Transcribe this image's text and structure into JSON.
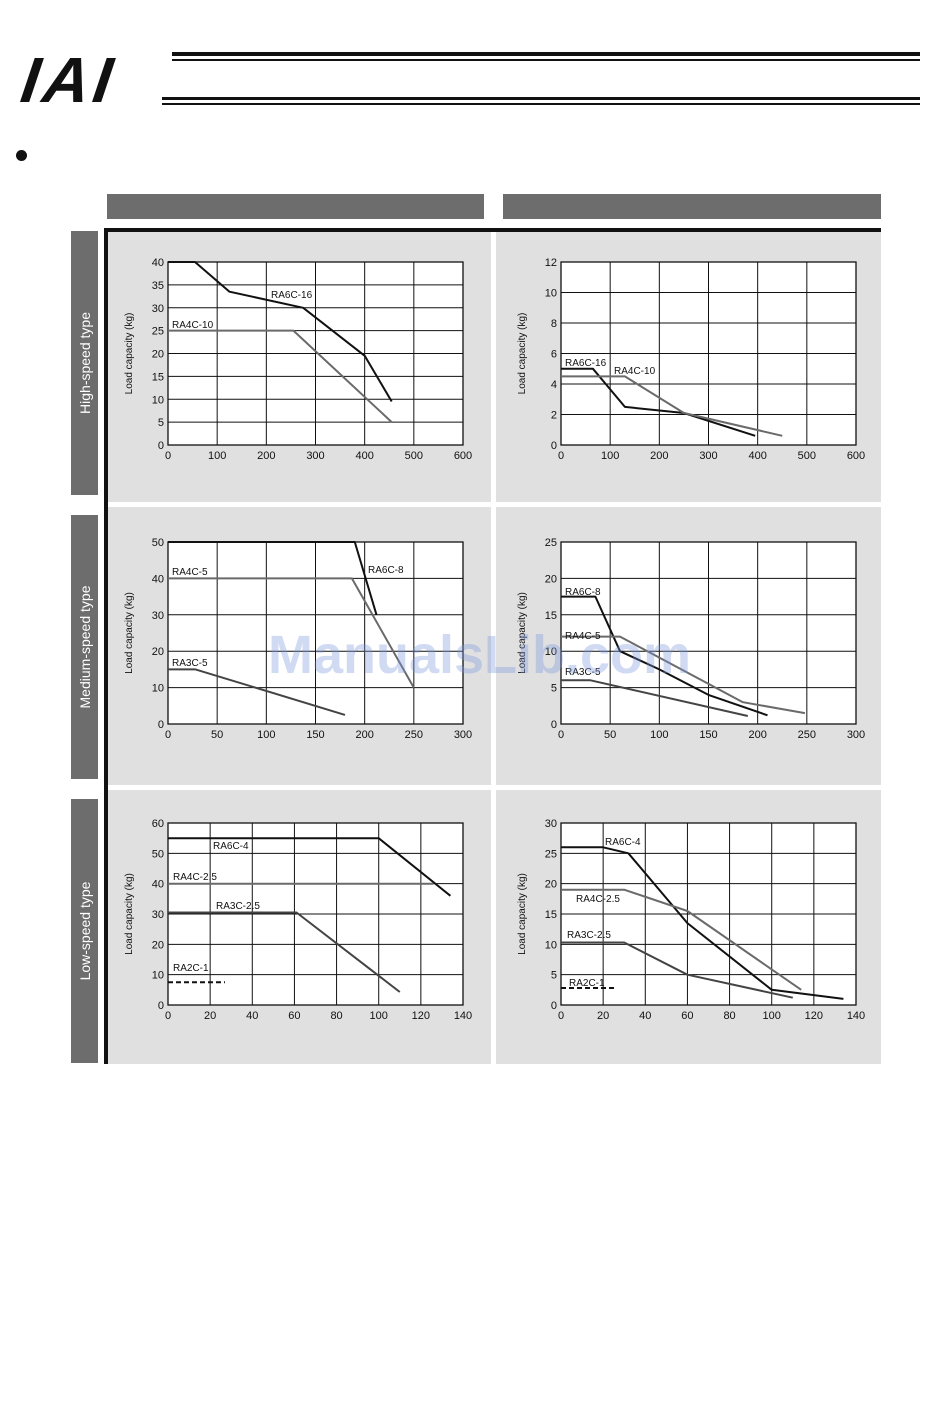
{
  "header": {
    "logo_text": "IAI"
  },
  "watermark": "ManualsLib.com",
  "row_labels": [
    "High-speed type",
    "Medium-speed type",
    "Low-speed type"
  ],
  "chart_data": [
    {
      "id": "c0",
      "type": "line",
      "ylabel": "Load capacity (kg)",
      "xlabel": "",
      "xlim": [
        0,
        600
      ],
      "ylim": [
        0,
        40
      ],
      "xticks": [
        0,
        100,
        200,
        300,
        400,
        500,
        600
      ],
      "yticks": [
        0,
        5,
        10,
        15,
        20,
        25,
        30,
        35,
        40
      ],
      "series": [
        {
          "name": "RA6C-16",
          "color": "#111111",
          "points": [
            [
              0,
              40
            ],
            [
              55,
              40
            ],
            [
              125,
              33.5
            ],
            [
              275,
              30
            ],
            [
              400,
              19.5
            ],
            [
              455,
              9.5
            ]
          ]
        },
        {
          "name": "RA4C-10",
          "color": "#6a6a6a",
          "points": [
            [
              0,
              25
            ],
            [
              255,
              25
            ],
            [
              455,
              5
            ]
          ]
        }
      ]
    },
    {
      "id": "c1",
      "type": "line",
      "ylabel": "Load capacity (kg)",
      "xlabel": "",
      "xlim": [
        0,
        600
      ],
      "ylim": [
        0,
        12
      ],
      "xticks": [
        0,
        100,
        200,
        300,
        400,
        500,
        600
      ],
      "yticks": [
        0,
        2,
        4,
        6,
        8,
        10,
        12
      ],
      "series": [
        {
          "name": "RA6C-16",
          "color": "#111111",
          "points": [
            [
              0,
              5
            ],
            [
              65,
              5
            ],
            [
              130,
              2.5
            ],
            [
              250,
              2.1
            ],
            [
              395,
              0.6
            ]
          ]
        },
        {
          "name": "RA4C-10",
          "color": "#6a6a6a",
          "points": [
            [
              0,
              4.5
            ],
            [
              130,
              4.5
            ],
            [
              250,
              2.1
            ],
            [
              450,
              0.6
            ]
          ]
        }
      ]
    },
    {
      "id": "c2",
      "type": "line",
      "ylabel": "Load capacity (kg)",
      "xlabel": "",
      "xlim": [
        0,
        300
      ],
      "ylim": [
        0,
        50
      ],
      "xticks": [
        0,
        50,
        100,
        150,
        200,
        250,
        300
      ],
      "yticks": [
        0,
        10,
        20,
        30,
        40,
        50
      ],
      "series": [
        {
          "name": "RA6C-8",
          "color": "#111111",
          "points": [
            [
              0,
              50
            ],
            [
              190,
              50
            ],
            [
              212,
              30
            ]
          ]
        },
        {
          "name": "RA4C-5",
          "color": "#6a6a6a",
          "points": [
            [
              0,
              40
            ],
            [
              187,
              40
            ],
            [
              250,
              10
            ]
          ]
        },
        {
          "name": "RA3C-5",
          "color": "#444444",
          "points": [
            [
              0,
              15
            ],
            [
              28,
              15
            ],
            [
              180,
              2.5
            ]
          ]
        }
      ]
    },
    {
      "id": "c3",
      "type": "line",
      "ylabel": "Load capacity (kg)",
      "xlabel": "",
      "xlim": [
        0,
        300
      ],
      "ylim": [
        0,
        25
      ],
      "xticks": [
        0,
        50,
        100,
        150,
        200,
        250,
        300
      ],
      "yticks": [
        0,
        5,
        10,
        15,
        20,
        25
      ],
      "series": [
        {
          "name": "RA6C-8",
          "color": "#111111",
          "points": [
            [
              0,
              17.5
            ],
            [
              35,
              17.5
            ],
            [
              60,
              10
            ],
            [
              100,
              7.5
            ],
            [
              150,
              4
            ],
            [
              210,
              1.2
            ]
          ]
        },
        {
          "name": "RA4C-5",
          "color": "#6a6a6a",
          "points": [
            [
              0,
              12
            ],
            [
              60,
              12
            ],
            [
              185,
              3
            ],
            [
              248,
              1.5
            ]
          ]
        },
        {
          "name": "RA3C-5",
          "color": "#444444",
          "points": [
            [
              0,
              6
            ],
            [
              30,
              6
            ],
            [
              190,
              1.1
            ]
          ]
        }
      ]
    },
    {
      "id": "c4",
      "type": "line",
      "ylabel": "Load capacity (kg)",
      "xlabel": "",
      "xlim": [
        0,
        140
      ],
      "ylim": [
        0,
        60
      ],
      "xticks": [
        0,
        20,
        40,
        60,
        80,
        100,
        120,
        140
      ],
      "yticks": [
        0,
        10,
        20,
        30,
        40,
        50,
        60
      ],
      "series": [
        {
          "name": "RA6C-4",
          "color": "#111111",
          "points": [
            [
              0,
              55
            ],
            [
              100,
              55
            ],
            [
              134,
              36
            ]
          ]
        },
        {
          "name": "RA4C-2.5",
          "color": "#6a6a6a",
          "points": [
            [
              0,
              40
            ],
            [
              126,
              40
            ]
          ]
        },
        {
          "name": "RA3C-2.5",
          "color": "#444444",
          "points": [
            [
              0,
              30.5
            ],
            [
              61,
              30.5
            ],
            [
              110,
              4.3
            ]
          ]
        },
        {
          "name": "RA2C-1",
          "color": "#111111",
          "dashed": true,
          "points": [
            [
              0,
              7.5
            ],
            [
              27,
              7.5
            ]
          ]
        }
      ]
    },
    {
      "id": "c5",
      "type": "line",
      "ylabel": "Load capacity (kg)",
      "xlabel": "",
      "xlim": [
        0,
        140
      ],
      "ylim": [
        0,
        30
      ],
      "xticks": [
        0,
        20,
        40,
        60,
        80,
        100,
        120,
        140
      ],
      "yticks": [
        0,
        5,
        10,
        15,
        20,
        25,
        30
      ],
      "series": [
        {
          "name": "RA6C-4",
          "color": "#111111",
          "points": [
            [
              0,
              26
            ],
            [
              20,
              26
            ],
            [
              32,
              25
            ],
            [
              60,
              13.5
            ],
            [
              100,
              2.5
            ],
            [
              134,
              1
            ]
          ]
        },
        {
          "name": "RA4C-2.5",
          "color": "#6a6a6a",
          "points": [
            [
              0,
              19
            ],
            [
              30,
              19
            ],
            [
              60,
              15.5
            ],
            [
              114,
              2.5
            ]
          ]
        },
        {
          "name": "RA3C-2.5",
          "color": "#444444",
          "points": [
            [
              0,
              10.3
            ],
            [
              30,
              10.3
            ],
            [
              60,
              5
            ],
            [
              110,
              1.2
            ]
          ]
        },
        {
          "name": "RA2C-1",
          "color": "#111111",
          "dashed": true,
          "points": [
            [
              0,
              2.8
            ],
            [
              26,
              2.8
            ]
          ]
        }
      ]
    }
  ]
}
